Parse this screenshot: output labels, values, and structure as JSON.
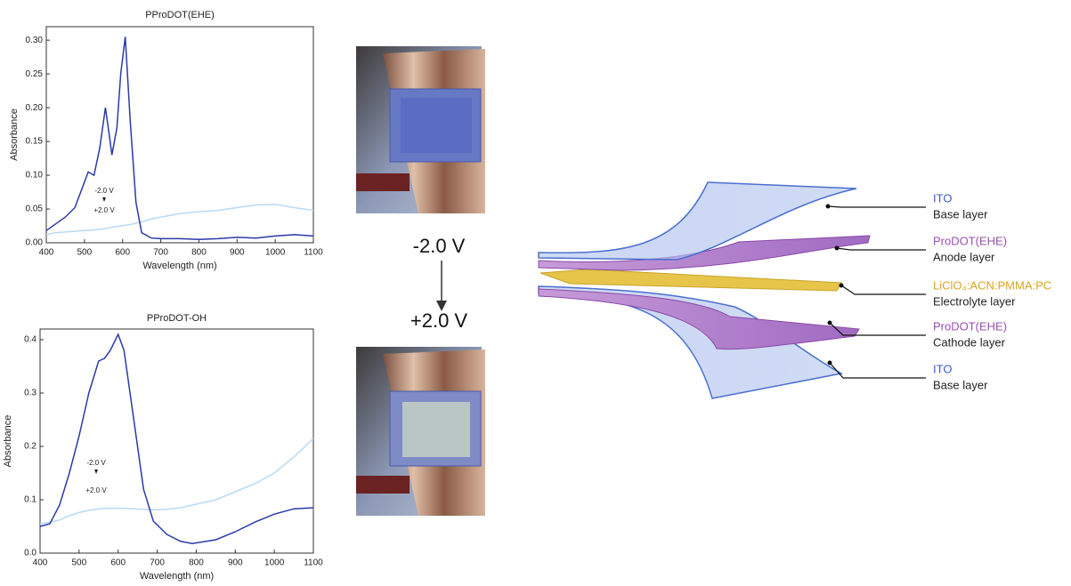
{
  "chart_data": [
    {
      "type": "line",
      "title": "PProDOT(EHE)",
      "x_label": "Wavelength (nm)",
      "y_label": "Absorbance",
      "x": [
        400,
        425,
        450,
        475,
        500,
        510,
        525,
        540,
        555,
        565,
        572,
        585,
        595,
        607,
        620,
        635,
        650,
        675,
        700,
        750,
        800,
        850,
        900,
        950,
        1000,
        1050,
        1100
      ],
      "series": [
        {
          "name": "-2.0 V",
          "color": "#2b3aa8",
          "values": [
            0.018,
            0.028,
            0.038,
            0.052,
            0.09,
            0.105,
            0.1,
            0.14,
            0.2,
            0.16,
            0.13,
            0.17,
            0.25,
            0.305,
            0.18,
            0.06,
            0.015,
            0.007,
            0.006,
            0.006,
            0.005,
            0.006,
            0.008,
            0.007,
            0.01,
            0.012,
            0.01
          ]
        },
        {
          "name": "+2.0 V",
          "color": "#b8daf5",
          "values": [
            0.012,
            0.015,
            0.016,
            0.017,
            0.018,
            0.018,
            0.019,
            0.02,
            0.021,
            0.022,
            0.023,
            0.024,
            0.025,
            0.026,
            0.027,
            0.029,
            0.031,
            0.035,
            0.038,
            0.043,
            0.046,
            0.048,
            0.052,
            0.056,
            0.057,
            0.052,
            0.048
          ]
        }
      ],
      "xlim": [
        400,
        1100
      ],
      "xticks": [
        400,
        500,
        600,
        700,
        800,
        900,
        1000,
        1100
      ],
      "ylim": [
        0,
        0.32
      ],
      "yticks": [
        {
          "value": 0,
          "label": "0.00"
        },
        0.05,
        {
          "value": 0.1,
          "label": "0.10"
        },
        0.15,
        {
          "value": 0.2,
          "label": "0.20"
        },
        0.25,
        {
          "value": 0.3,
          "label": "0.30"
        }
      ]
    },
    {
      "type": "line",
      "title": "PProDOT-OH",
      "x_label": "Wavelength (nm)",
      "y_label": "Absorbance",
      "x": [
        400,
        425,
        450,
        475,
        500,
        525,
        550,
        565,
        580,
        600,
        615,
        640,
        665,
        690,
        725,
        760,
        790,
        850,
        900,
        950,
        1000,
        1050,
        1100
      ],
      "series": [
        {
          "name": "-2.0 V",
          "color": "#2b3aa8",
          "values": [
            0.05,
            0.055,
            0.09,
            0.15,
            0.22,
            0.3,
            0.36,
            0.365,
            0.38,
            0.41,
            0.38,
            0.25,
            0.12,
            0.06,
            0.035,
            0.022,
            0.018,
            0.025,
            0.04,
            0.058,
            0.073,
            0.083,
            0.085
          ]
        },
        {
          "name": "+2.0 V",
          "color": "#b8daf5",
          "values": [
            0.055,
            0.058,
            0.062,
            0.07,
            0.076,
            0.08,
            0.083,
            0.084,
            0.084,
            0.084,
            0.084,
            0.083,
            0.082,
            0.081,
            0.082,
            0.085,
            0.09,
            0.1,
            0.115,
            0.13,
            0.15,
            0.18,
            0.215
          ]
        }
      ],
      "xlim": [
        400,
        1100
      ],
      "xticks": [
        400,
        500,
        600,
        700,
        800,
        900,
        1000,
        1100
      ],
      "ylim": [
        0,
        0.42
      ],
      "yticks": [
        {
          "value": 0,
          "label": "0.0"
        },
        0.1,
        0.2,
        0.3,
        0.4
      ]
    }
  ],
  "device": {
    "from": "-2.0 V",
    "to": "+2.0 V"
  },
  "diagram": {
    "layers": [
      {
        "name": "ITO",
        "role": "Base layer"
      },
      {
        "name": "ProDOT(EHE)",
        "role": "Anode layer"
      },
      {
        "name": "LiClO₄:ACN:PMMA:PC",
        "role": "Electrolyte layer"
      },
      {
        "name": "ProDOT(EHE)",
        "role": "Cathode layer"
      },
      {
        "name": "ITO",
        "role": "Base layer"
      }
    ]
  }
}
